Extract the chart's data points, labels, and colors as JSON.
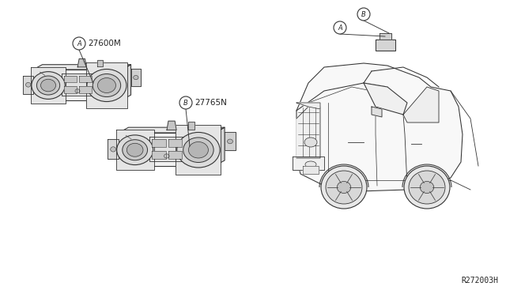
{
  "background_color": "#ffffff",
  "line_color": "#333333",
  "text_color": "#222222",
  "part_number": "R272003H",
  "label_A_part": "27600M",
  "label_B_part": "27765N",
  "font_size_label": 7.5,
  "font_size_part_num": 7
}
